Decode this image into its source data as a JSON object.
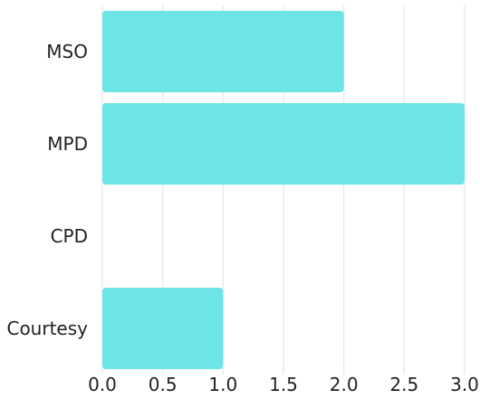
{
  "chart_data": {
    "type": "bar",
    "orientation": "horizontal",
    "categories": [
      "MSO",
      "MPD",
      "CPD",
      "Courtesy"
    ],
    "values": [
      2.0,
      3.0,
      0.0,
      1.0
    ],
    "title": "",
    "xlabel": "",
    "ylabel": "",
    "xlim": [
      0,
      3.0
    ],
    "xticks": [
      "0.0",
      "0.5",
      "1.0",
      "1.5",
      "2.0",
      "2.5",
      "3.0"
    ],
    "grid": true,
    "legend": "none",
    "bar_color": "#6de4e6"
  }
}
